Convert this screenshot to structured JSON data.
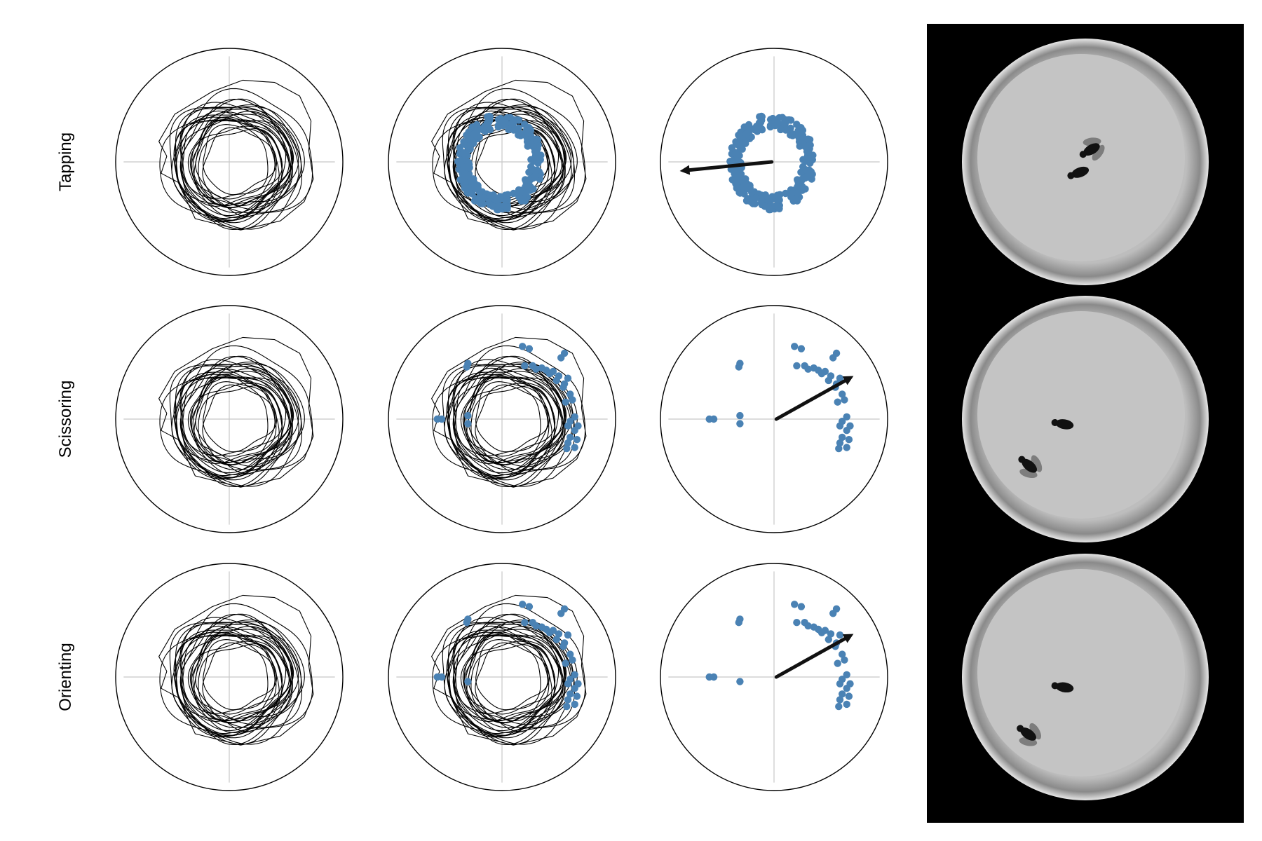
{
  "figure": {
    "colors": {
      "dot": "#4a82b4",
      "trace": "#000000",
      "grid": "#c8c8c8",
      "photo_bg": "#000000"
    },
    "icons": {
      "fly_icon": "fly-icon",
      "arena_icon": "arena-icon"
    }
  },
  "chart_data": {
    "type": "scatter",
    "title": "",
    "xlabel": "",
    "ylabel": "",
    "xlim": [
      -1,
      1
    ],
    "ylim": [
      -1,
      1
    ],
    "grid": true,
    "columns": [
      "trajectory",
      "trajectory_with_events",
      "event_positions_with_mean_vector",
      "arena_frame"
    ],
    "rows": [
      {
        "label": "Tapping",
        "trajectory_rings": {
          "count": 24,
          "cx": 0.02,
          "cy": -0.02,
          "radius_range": [
            0.33,
            0.58
          ]
        },
        "event_cluster": {
          "shape": "ring",
          "cx": -0.02,
          "cy": 0.0,
          "rx": 0.33,
          "ry": 0.37
        },
        "mean_vector": {
          "from": [
            -0.02,
            0.0
          ],
          "to": [
            -0.83,
            -0.08
          ]
        },
        "event_points": []
      },
      {
        "label": "Scissoring",
        "trajectory_rings": {
          "count": 24,
          "cx": 0.02,
          "cy": -0.02,
          "radius_range": [
            0.33,
            0.58
          ]
        },
        "mean_vector": {
          "from": [
            0.02,
            0.0
          ],
          "to": [
            0.7,
            0.38
          ]
        },
        "event_points": [
          [
            -0.3,
            0.49
          ],
          [
            -0.31,
            0.46
          ],
          [
            -0.57,
            0.0
          ],
          [
            -0.53,
            0.0
          ],
          [
            -0.3,
            0.03
          ],
          [
            -0.3,
            -0.04
          ],
          [
            0.18,
            0.64
          ],
          [
            0.24,
            0.62
          ],
          [
            0.55,
            0.58
          ],
          [
            0.52,
            0.54
          ],
          [
            0.2,
            0.47
          ],
          [
            0.27,
            0.47
          ],
          [
            0.3,
            0.44
          ],
          [
            0.35,
            0.45
          ],
          [
            0.39,
            0.43
          ],
          [
            0.42,
            0.4
          ],
          [
            0.45,
            0.42
          ],
          [
            0.5,
            0.38
          ],
          [
            0.48,
            0.34
          ],
          [
            0.58,
            0.36
          ],
          [
            0.55,
            0.31
          ],
          [
            0.54,
            0.28
          ],
          [
            0.6,
            0.22
          ],
          [
            0.62,
            0.17
          ],
          [
            0.56,
            0.15
          ],
          [
            0.64,
            0.02
          ],
          [
            0.6,
            -0.02
          ],
          [
            0.67,
            -0.06
          ],
          [
            0.58,
            -0.06
          ],
          [
            0.64,
            -0.1
          ],
          [
            0.6,
            -0.16
          ],
          [
            0.66,
            -0.18
          ],
          [
            0.58,
            -0.21
          ],
          [
            0.64,
            -0.25
          ],
          [
            0.57,
            -0.26
          ]
        ]
      },
      {
        "label": "Orienting",
        "trajectory_rings": {
          "count": 24,
          "cx": 0.02,
          "cy": -0.02,
          "radius_range": [
            0.33,
            0.58
          ]
        },
        "mean_vector": {
          "from": [
            0.02,
            0.0
          ],
          "to": [
            0.7,
            0.38
          ]
        },
        "event_points": [
          [
            -0.3,
            0.51
          ],
          [
            -0.31,
            0.48
          ],
          [
            -0.57,
            0.0
          ],
          [
            -0.53,
            0.0
          ],
          [
            -0.3,
            -0.04
          ],
          [
            0.18,
            0.64
          ],
          [
            0.24,
            0.62
          ],
          [
            0.55,
            0.6
          ],
          [
            0.52,
            0.56
          ],
          [
            0.2,
            0.48
          ],
          [
            0.27,
            0.48
          ],
          [
            0.3,
            0.45
          ],
          [
            0.35,
            0.44
          ],
          [
            0.39,
            0.42
          ],
          [
            0.42,
            0.39
          ],
          [
            0.45,
            0.41
          ],
          [
            0.5,
            0.38
          ],
          [
            0.48,
            0.33
          ],
          [
            0.58,
            0.37
          ],
          [
            0.55,
            0.3
          ],
          [
            0.54,
            0.27
          ],
          [
            0.6,
            0.2
          ],
          [
            0.62,
            0.15
          ],
          [
            0.56,
            0.12
          ],
          [
            0.64,
            0.02
          ],
          [
            0.6,
            -0.02
          ],
          [
            0.67,
            -0.06
          ],
          [
            0.58,
            -0.06
          ],
          [
            0.64,
            -0.1
          ],
          [
            0.6,
            -0.15
          ],
          [
            0.66,
            -0.17
          ],
          [
            0.58,
            -0.2
          ],
          [
            0.64,
            -0.24
          ],
          [
            0.57,
            -0.26
          ]
        ]
      }
    ],
    "arena_frames": [
      {
        "row": "Tapping",
        "flies": [
          {
            "x": 0.06,
            "y": -0.12,
            "angle": 150,
            "wings": true
          },
          {
            "x": -0.05,
            "y": 0.1,
            "angle": 160,
            "wings": false
          }
        ]
      },
      {
        "row": "Scissoring",
        "flies": [
          {
            "x": -0.2,
            "y": 0.05,
            "angle": 190,
            "wings": false
          },
          {
            "x": -0.54,
            "y": 0.45,
            "angle": 220,
            "wings": true
          }
        ]
      },
      {
        "row": "Orienting",
        "flies": [
          {
            "x": -0.2,
            "y": 0.1,
            "angle": 190,
            "wings": false
          },
          {
            "x": -0.55,
            "y": 0.55,
            "angle": 215,
            "wings": true
          }
        ]
      }
    ]
  }
}
